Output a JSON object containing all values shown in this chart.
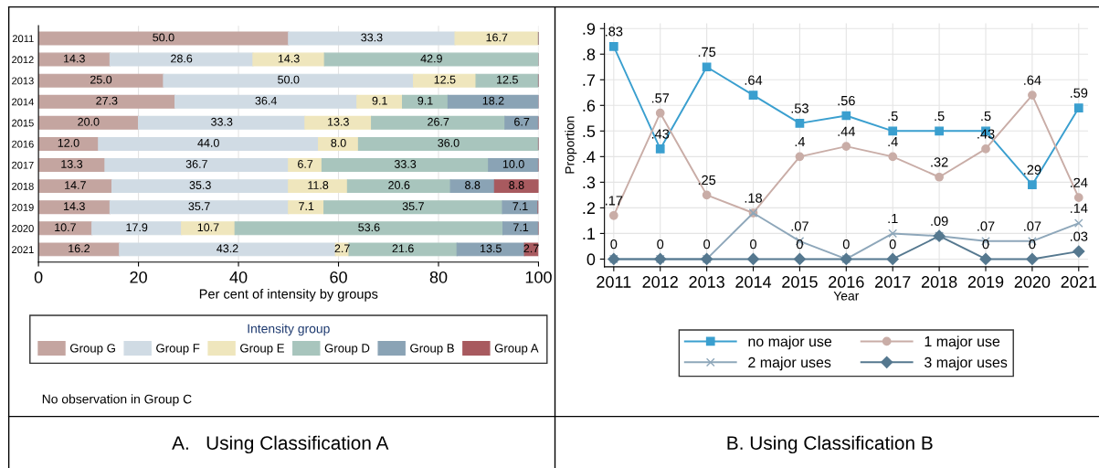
{
  "chart_data": [
    {
      "type": "bar",
      "orientation": "horizontal",
      "stacked": true,
      "title": "A.   Using Classification A",
      "xlabel": "Per cent of intensity by groups",
      "legend_title": "Intensity group",
      "legend": "bottom",
      "categories": [
        "2011",
        "2012",
        "2013",
        "2014",
        "2015",
        "2016",
        "2017",
        "2018",
        "2019",
        "2020",
        "2021"
      ],
      "series": [
        {
          "name": "Group G",
          "color": "#c4a5a0",
          "values": [
            50.0,
            14.3,
            25.0,
            27.3,
            20.0,
            12.0,
            13.3,
            14.7,
            14.3,
            10.7,
            16.2
          ],
          "value_labels": [
            "50.0",
            "14.3",
            "25.0",
            "27.3",
            "20.0",
            "12.0",
            "13.3",
            "14.7",
            "14.3",
            "10.7",
            "16.2"
          ]
        },
        {
          "name": "Group F",
          "color": "#d0dbe4",
          "values": [
            33.3,
            28.6,
            50.0,
            36.4,
            33.3,
            44.0,
            36.7,
            35.3,
            35.7,
            17.9,
            43.2
          ],
          "value_labels": [
            "33.3",
            "28.6",
            "50.0",
            "36.4",
            "33.3",
            "44.0",
            "36.7",
            "35.3",
            "35.7",
            "17.9",
            "43.2"
          ]
        },
        {
          "name": "Group E",
          "color": "#efe6bd",
          "values": [
            16.7,
            14.3,
            12.5,
            9.1,
            13.3,
            8.0,
            6.7,
            11.8,
            7.1,
            10.7,
            2.7
          ],
          "value_labels": [
            "16.7",
            "14.3",
            "12.5",
            "9.1",
            "13.3",
            "8.0",
            "6.7",
            "11.8",
            "7.1",
            "10.7",
            "2.7"
          ]
        },
        {
          "name": "Group D",
          "color": "#a8c5bd",
          "values": [
            null,
            42.9,
            12.5,
            9.1,
            26.7,
            36.0,
            33.3,
            20.6,
            35.7,
            53.6,
            21.6
          ],
          "value_labels": [
            null,
            "42.9",
            "12.5",
            "9.1",
            "26.7",
            "36.0",
            "33.3",
            "20.6",
            "35.7",
            "53.6",
            "21.6"
          ]
        },
        {
          "name": "Group B",
          "color": "#8aa3b5",
          "values": [
            null,
            null,
            null,
            18.2,
            6.7,
            null,
            10.0,
            8.8,
            7.1,
            7.1,
            13.5
          ],
          "value_labels": [
            null,
            null,
            null,
            "18.2",
            "6.7",
            null,
            "10.0",
            "8.8",
            "7.1",
            "7.1",
            "13.5"
          ]
        },
        {
          "name": "Group A",
          "color": "#a85a5f",
          "values": [
            null,
            null,
            null,
            null,
            null,
            null,
            null,
            8.8,
            null,
            null,
            2.7
          ],
          "value_labels": [
            null,
            null,
            null,
            null,
            null,
            null,
            null,
            "8.8",
            null,
            null,
            "2.7"
          ]
        }
      ],
      "xlim": [
        0,
        100
      ],
      "xticks": [
        0,
        20,
        40,
        60,
        80,
        100
      ],
      "grid": "x",
      "annotations": [
        "No observation in Group C"
      ]
    },
    {
      "type": "line",
      "title": "B. Using Classification B",
      "xlabel": "Year",
      "ylabel": "Proportion",
      "legend": "bottom",
      "x": [
        2011,
        2012,
        2013,
        2014,
        2015,
        2016,
        2017,
        2018,
        2019,
        2020,
        2021
      ],
      "series": [
        {
          "name": "no major use",
          "color": "#3a9fcf",
          "marker": "square",
          "values": [
            0.83,
            0.43,
            0.75,
            0.64,
            0.53,
            0.56,
            0.5,
            0.5,
            0.5,
            0.29,
            0.59
          ],
          "value_labels": [
            ".83",
            ".43",
            ".75",
            ".64",
            ".53",
            ".56",
            ".5",
            ".5",
            ".5",
            ".29",
            ".59"
          ]
        },
        {
          "name": "1 major use",
          "color": "#c9ada7",
          "marker": "circle",
          "values": [
            0.17,
            0.57,
            0.25,
            0.18,
            0.4,
            0.44,
            0.4,
            0.32,
            0.43,
            0.64,
            0.24
          ],
          "value_labels": [
            ".17",
            ".57",
            ".25",
            ".18",
            ".4",
            ".44",
            ".4",
            ".32",
            ".43",
            ".64",
            ".24"
          ]
        },
        {
          "name": "2 major uses",
          "color": "#8ea7ba",
          "marker": "cross",
          "values": [
            0,
            0,
            0,
            0.18,
            0.07,
            0,
            0.1,
            0.09,
            0.07,
            0.07,
            0.14
          ],
          "value_labels": [
            null,
            null,
            null,
            null,
            ".07",
            null,
            ".1",
            null,
            ".07",
            ".07",
            ".14"
          ]
        },
        {
          "name": "3 major uses",
          "color": "#55788f",
          "marker": "diamond",
          "values": [
            0,
            0,
            0,
            0,
            0,
            0,
            0,
            0.09,
            0,
            0,
            0.03
          ],
          "value_labels": [
            "0",
            "0",
            "0",
            "0",
            "0",
            "0",
            "0",
            ".09",
            "0",
            "0",
            ".03"
          ]
        }
      ],
      "xlim": [
        2010.8,
        2021.2
      ],
      "xticks": [
        2011,
        2012,
        2013,
        2014,
        2015,
        2016,
        2017,
        2018,
        2019,
        2020,
        2021
      ],
      "ylim": [
        -0.03,
        0.92
      ],
      "yticks": [
        0,
        {
          "value": 0.1,
          "label": ".1"
        },
        {
          "value": 0.2,
          "label": ".2"
        },
        {
          "value": 0.3,
          "label": ".3"
        },
        {
          "value": 0.4,
          "label": ".4"
        },
        {
          "value": 0.5,
          "label": ".5"
        },
        {
          "value": 0.6,
          "label": ".6"
        },
        {
          "value": 0.7,
          "label": ".7"
        },
        {
          "value": 0.8,
          "label": ".8"
        },
        {
          "value": 0.9,
          "label": ".9"
        }
      ],
      "grid": true
    }
  ]
}
